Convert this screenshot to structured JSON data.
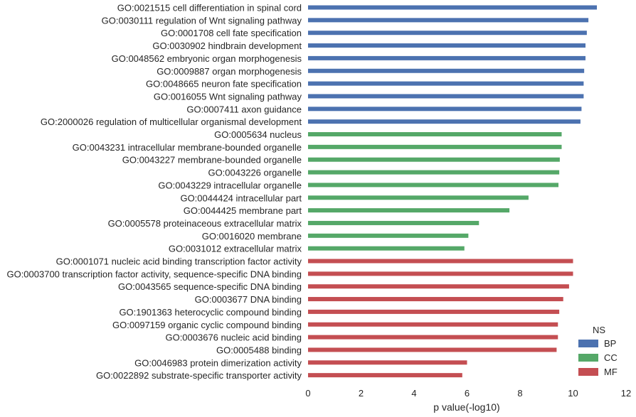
{
  "chart_data": {
    "type": "bar",
    "orientation": "horizontal",
    "xlabel": "p value(-log10)",
    "xlim": [
      0,
      12
    ],
    "xticks": [
      0,
      2,
      4,
      6,
      8,
      10,
      12
    ],
    "grid": false,
    "legend": {
      "title": "NS",
      "placement": "bottom-right",
      "entries": [
        {
          "name": "BP",
          "color": "#4c72b0"
        },
        {
          "name": "CC",
          "color": "#55a868"
        },
        {
          "name": "MF",
          "color": "#c44e52"
        }
      ]
    },
    "bars": [
      {
        "label": "GO:0021515 cell differentiation in spinal cord",
        "ns": "BP",
        "value": 10.9
      },
      {
        "label": "GO:0030111 regulation of Wnt signaling pathway",
        "ns": "BP",
        "value": 10.58
      },
      {
        "label": "GO:0001708 cell fate specification",
        "ns": "BP",
        "value": 10.52
      },
      {
        "label": "GO:0030902 hindbrain development",
        "ns": "BP",
        "value": 10.47
      },
      {
        "label": "GO:0048562 embryonic organ morphogenesis",
        "ns": "BP",
        "value": 10.47
      },
      {
        "label": "GO:0009887 organ morphogenesis",
        "ns": "BP",
        "value": 10.42
      },
      {
        "label": "GO:0048665 neuron fate specification",
        "ns": "BP",
        "value": 10.4
      },
      {
        "label": "GO:0016055 Wnt signaling pathway",
        "ns": "BP",
        "value": 10.4
      },
      {
        "label": "GO:0007411 axon guidance",
        "ns": "BP",
        "value": 10.32
      },
      {
        "label": "GO:2000026 regulation of multicellular organismal development",
        "ns": "BP",
        "value": 10.28
      },
      {
        "label": "GO:0005634 nucleus",
        "ns": "CC",
        "value": 9.57
      },
      {
        "label": "GO:0043231 intracellular membrane-bounded organelle",
        "ns": "CC",
        "value": 9.57
      },
      {
        "label": "GO:0043227 membrane-bounded organelle",
        "ns": "CC",
        "value": 9.5
      },
      {
        "label": "GO:0043226 organelle",
        "ns": "CC",
        "value": 9.48
      },
      {
        "label": "GO:0043229 intracellular organelle",
        "ns": "CC",
        "value": 9.45
      },
      {
        "label": "GO:0044424 intracellular part",
        "ns": "CC",
        "value": 8.32
      },
      {
        "label": "GO:0044425 membrane part",
        "ns": "CC",
        "value": 7.6
      },
      {
        "label": "GO:0005578 proteinaceous extracellular matrix",
        "ns": "CC",
        "value": 6.45
      },
      {
        "label": "GO:0016020 membrane",
        "ns": "CC",
        "value": 6.05
      },
      {
        "label": "GO:0031012 extracellular matrix",
        "ns": "CC",
        "value": 5.9
      },
      {
        "label": "GO:0001071 nucleic acid binding transcription factor activity",
        "ns": "MF",
        "value": 10.0
      },
      {
        "label": "GO:0003700 transcription factor activity, sequence-specific DNA binding",
        "ns": "MF",
        "value": 10.0
      },
      {
        "label": "GO:0043565 sequence-specific DNA binding",
        "ns": "MF",
        "value": 9.85
      },
      {
        "label": "GO:0003677 DNA binding",
        "ns": "MF",
        "value": 9.63
      },
      {
        "label": "GO:1901363 heterocyclic compound binding",
        "ns": "MF",
        "value": 9.48
      },
      {
        "label": "GO:0097159 organic cyclic compound binding",
        "ns": "MF",
        "value": 9.43
      },
      {
        "label": "GO:0003676 nucleic acid binding",
        "ns": "MF",
        "value": 9.43
      },
      {
        "label": "GO:0005488 binding",
        "ns": "MF",
        "value": 9.38
      },
      {
        "label": "GO:0046983 protein dimerization activity",
        "ns": "MF",
        "value": 6.0
      },
      {
        "label": "GO:0022892 substrate-specific transporter activity",
        "ns": "MF",
        "value": 5.82
      }
    ]
  }
}
